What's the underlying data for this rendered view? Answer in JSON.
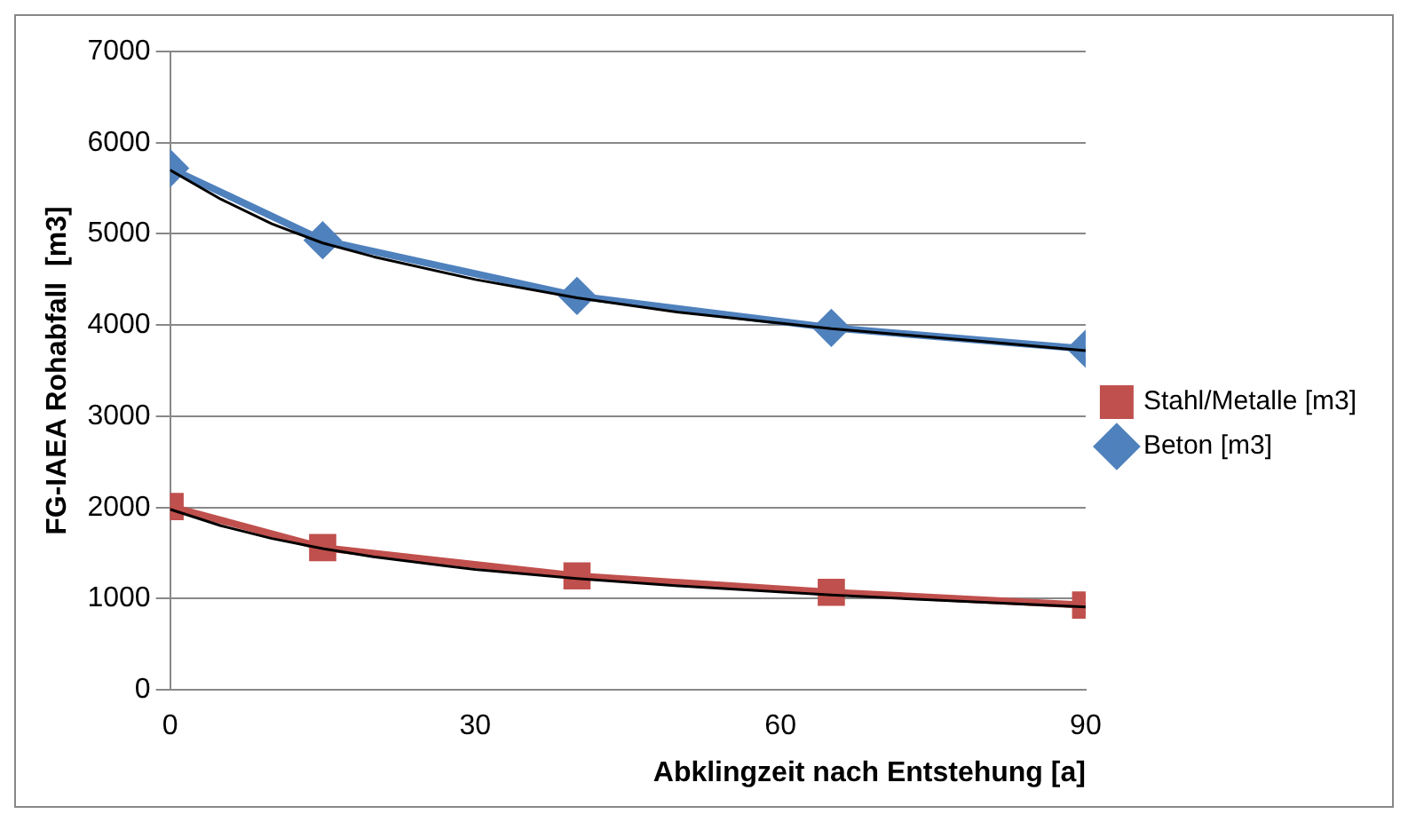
{
  "chart_data": {
    "type": "line",
    "ylabel": "FG-IAEA Rohabfall  [m3]",
    "xlabel": "Abklingzeit nach Entstehung [a]",
    "xlim": [
      0,
      90
    ],
    "xticks": [
      0,
      30,
      60,
      90
    ],
    "ylim": [
      0,
      7000
    ],
    "yticks": [
      0,
      1000,
      2000,
      3000,
      4000,
      5000,
      6000,
      7000
    ],
    "grid": "y",
    "legend": "right",
    "series": [
      {
        "name": "Stahl/Metalle [m3]",
        "color": "#c0504d",
        "marker": "square",
        "x": [
          0,
          15,
          40,
          65,
          90
        ],
        "values": [
          2010,
          1560,
          1250,
          1070,
          930
        ]
      },
      {
        "name": "Beton [m3]",
        "color": "#4f81bd",
        "marker": "diamond",
        "x": [
          0,
          15,
          40,
          65,
          90
        ],
        "values": [
          5720,
          4930,
          4320,
          3970,
          3740
        ]
      },
      {
        "type": "line",
        "color": "#000000",
        "marker": "none",
        "x": [
          0,
          5,
          10,
          15,
          20,
          30,
          40,
          50,
          65,
          80,
          90
        ],
        "values": [
          5700,
          5380,
          5110,
          4900,
          4750,
          4500,
          4300,
          4140,
          3960,
          3820,
          3720
        ]
      },
      {
        "type": "line",
        "color": "#000000",
        "marker": "none",
        "x": [
          0,
          5,
          10,
          15,
          20,
          30,
          40,
          50,
          65,
          80,
          90
        ],
        "values": [
          1980,
          1800,
          1660,
          1550,
          1460,
          1320,
          1220,
          1140,
          1040,
          960,
          910
        ]
      }
    ]
  }
}
